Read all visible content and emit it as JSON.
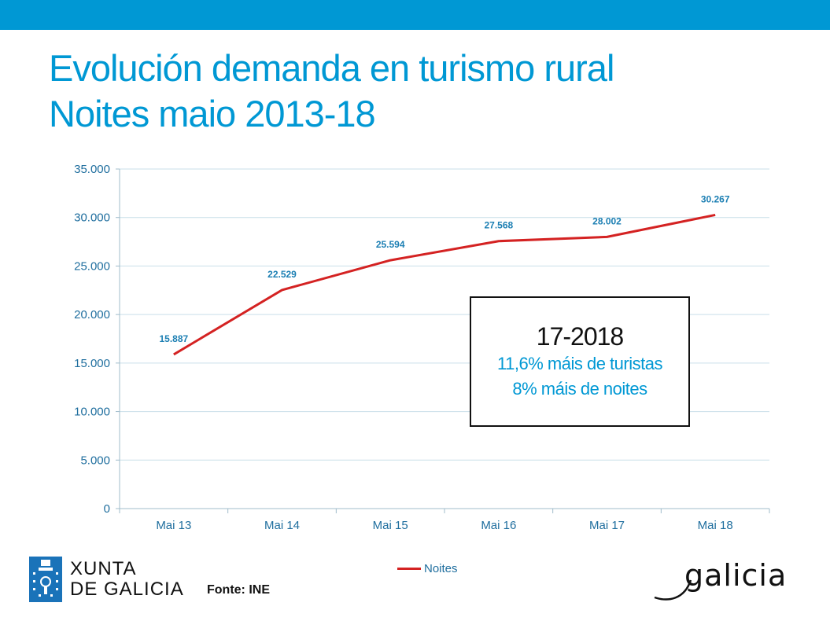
{
  "title": {
    "line1": "Evolución demanda en turismo rural",
    "line2": "Noites maio 2013-18"
  },
  "chart_data": {
    "type": "line",
    "categories": [
      "Mai 13",
      "Mai 14",
      "Mai 15",
      "Mai 16",
      "Mai 17",
      "Mai 18"
    ],
    "series": [
      {
        "name": "Noites",
        "values": [
          15887,
          22529,
          25594,
          27568,
          28002,
          30267
        ],
        "labels": [
          "15.887",
          "22.529",
          "25.594",
          "27.568",
          "28.002",
          "30.267"
        ],
        "color": "#d42222"
      }
    ],
    "yticks": [
      0,
      5000,
      10000,
      15000,
      20000,
      25000,
      30000,
      35000
    ],
    "ytick_labels": [
      "0",
      "5.000",
      "10.000",
      "15.000",
      "20.000",
      "25.000",
      "30.000",
      "35.000"
    ],
    "ylim": [
      0,
      35000
    ],
    "grid": true,
    "legend_position": "bottom"
  },
  "annotation": {
    "heading": "17-2018",
    "line1": "11,6% máis de turistas",
    "line2": "8% máis de noites"
  },
  "footer": {
    "xunta_line1": "XUNTA",
    "xunta_line2": "DE GALICIA",
    "source": "Fonte: INE",
    "galicia": "galicia"
  },
  "colors": {
    "accent": "#0098d4",
    "series": "#d42222",
    "axis_text": "#1f6e9e"
  }
}
